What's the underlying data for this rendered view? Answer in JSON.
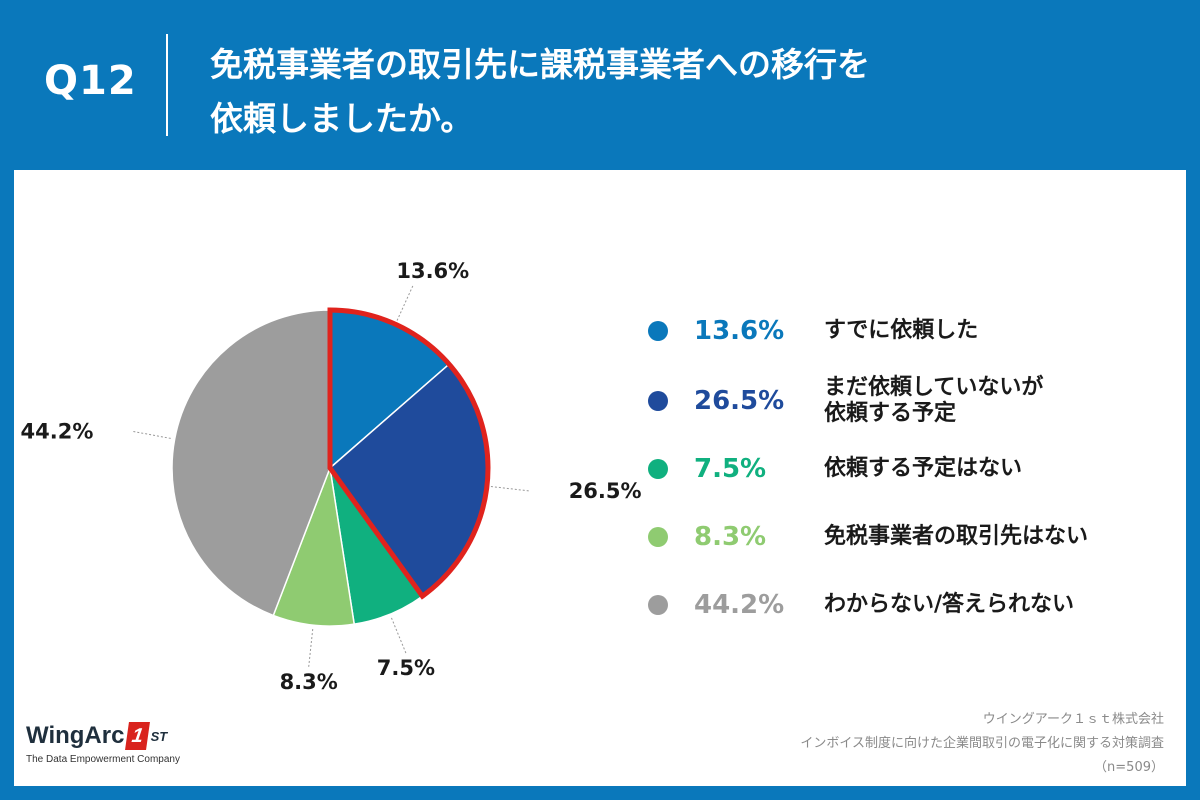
{
  "header": {
    "qnum": "Q12",
    "title_lines": [
      "免税事業者の取引先に課税事業者への移行を",
      "依頼しましたか。"
    ]
  },
  "chart_data": {
    "type": "pie",
    "title": "免税事業者の取引先に課税事業者への移行を依頼しましたか。",
    "slices": [
      {
        "label": "すでに依頼した",
        "label_lines": [
          "すでに依頼した"
        ],
        "value": 13.6,
        "display": "13.6%",
        "color": "#0a78bb",
        "highlight": true
      },
      {
        "label": "まだ依頼していないが依頼する予定",
        "label_lines": [
          "まだ依頼していないが",
          "依頼する予定"
        ],
        "value": 26.5,
        "display": "26.5%",
        "color": "#1f4b9c",
        "highlight": true
      },
      {
        "label": "依頼する予定はない",
        "label_lines": [
          "依頼する予定はない"
        ],
        "value": 7.5,
        "display": "7.5%",
        "color": "#10b07f",
        "highlight": false
      },
      {
        "label": "免税事業者の取引先はない",
        "label_lines": [
          "免税事業者の取引先はない"
        ],
        "value": 8.3,
        "display": "8.3%",
        "color": "#8fcb71",
        "highlight": false
      },
      {
        "label": "わからない/答えられない",
        "label_lines": [
          "わからない/答えられない"
        ],
        "value": 44.2,
        "display": "44.2%",
        "color": "#9d9d9d",
        "highlight": false
      }
    ],
    "highlight_color": "#e0231d",
    "legend_placement": "right"
  },
  "logo": {
    "main": "WingArc",
    "badge": "1",
    "st": "ST",
    "sub": "The Data Empowerment Company"
  },
  "source": {
    "company": "ウイングアーク１ｓｔ株式会社",
    "survey": "インボイス制度に向けた企業間取引の電子化に関する対策調査",
    "n": "（n=509）"
  }
}
